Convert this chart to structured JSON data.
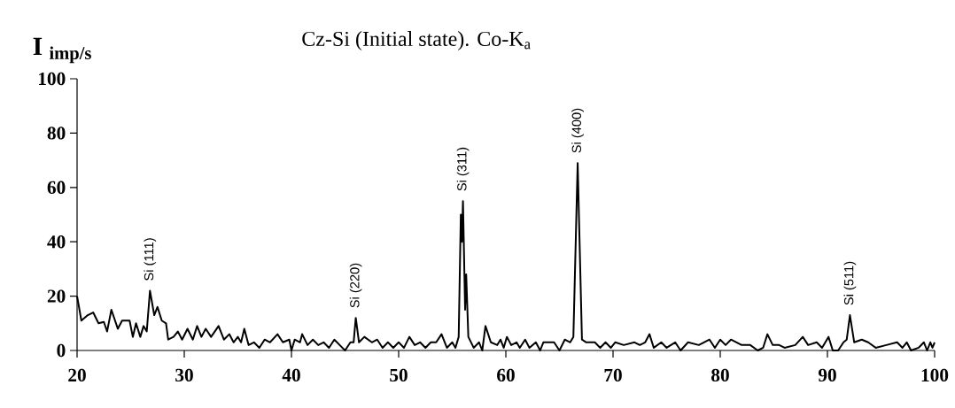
{
  "chart_data": {
    "type": "line",
    "title": "Cz-Si (Initial state). Co-K$_{a}$",
    "ylabel": "I $_{imp/s}$",
    "xlim": [
      20,
      100
    ],
    "ylim": [
      0,
      100
    ],
    "xticks": [
      20,
      30,
      40,
      50,
      60,
      70,
      80,
      90,
      100
    ],
    "yticks": [
      0,
      20,
      40,
      60,
      80,
      100
    ],
    "annotations": [
      {
        "text": "Si (111)",
        "x": 26.8,
        "y": 22
      },
      {
        "text": "Si (220)",
        "x": 46.0,
        "y": 12
      },
      {
        "text": "Si (311)",
        "x": 56.0,
        "y": 55
      },
      {
        "text": "Si (400)",
        "x": 66.7,
        "y": 69
      },
      {
        "text": "Si (511)",
        "x": 92.1,
        "y": 13
      }
    ],
    "series": [
      {
        "color": "#000000",
        "x": [
          20,
          20.4,
          21,
          21.5,
          22,
          22.5,
          22.8,
          23.2,
          23.8,
          24.2,
          24.9,
          25.2,
          25.5,
          25.9,
          26.2,
          26.5,
          26.8,
          27.2,
          27.5,
          27.9,
          28.3,
          28.5,
          29,
          29.4,
          29.8,
          30.3,
          30.8,
          31.2,
          31.6,
          32,
          32.5,
          33.2,
          33.7,
          34.2,
          34.6,
          35,
          35.3,
          35.6,
          36,
          36.5,
          37,
          37.5,
          38,
          38.7,
          39.2,
          39.8,
          40,
          40.3,
          40.8,
          41,
          41.5,
          42,
          42.5,
          43,
          43.5,
          44,
          44.5,
          45,
          45.5,
          45.8,
          46,
          46.3,
          46.8,
          47.5,
          48,
          48.5,
          49,
          49.5,
          50,
          50.5,
          51,
          51.5,
          52,
          52.5,
          53,
          53.5,
          54,
          54.5,
          55,
          55.3,
          55.6,
          55.8,
          55.9,
          56,
          56.2,
          56.3,
          56.5,
          57,
          57.5,
          57.8,
          58.1,
          58.6,
          59.2,
          59.5,
          59.8,
          60.1,
          60.5,
          61,
          61.3,
          61.8,
          62.2,
          62.8,
          63.2,
          63.5,
          64.5,
          65,
          65.5,
          66,
          66.3,
          66.7,
          67.1,
          67.5,
          68.3,
          68.8,
          69.3,
          69.8,
          70.2,
          71,
          72,
          72.5,
          73,
          73.4,
          73.8,
          74.5,
          75,
          75.8,
          76.3,
          77,
          78,
          79,
          79.5,
          80,
          80.5,
          81,
          82,
          82.8,
          83.5,
          84,
          84.4,
          84.9,
          85.5,
          86,
          87,
          87.7,
          88.2,
          89,
          89.5,
          90.1,
          90.5,
          91,
          91.5,
          91.8,
          92.1,
          92.5,
          93.2,
          93.8,
          94.5,
          95.5,
          96.5,
          97,
          97.4,
          97.8,
          98.5,
          99,
          99.3,
          99.6,
          99.8,
          100
        ],
        "values": [
          20,
          11,
          13,
          14,
          10,
          10.5,
          7,
          15,
          8,
          11,
          11,
          5,
          10,
          5,
          9,
          7,
          22,
          13,
          16,
          11,
          10,
          4,
          5,
          7,
          4,
          8,
          4,
          9,
          5,
          8,
          5,
          9,
          4,
          6,
          3,
          5,
          3,
          8,
          2,
          3,
          1,
          4,
          3,
          6,
          3,
          4,
          0,
          4,
          3,
          6,
          2,
          4,
          2,
          3,
          1,
          4,
          2,
          0,
          3,
          3,
          12,
          3,
          5,
          3,
          4,
          1,
          3,
          1,
          3,
          1,
          5,
          2,
          3,
          1,
          3,
          3,
          6,
          1,
          3,
          1,
          5,
          50,
          40,
          55,
          15,
          28,
          5,
          1,
          3,
          0,
          9,
          3,
          2,
          4,
          1,
          5,
          2,
          3,
          1,
          4,
          1,
          3,
          0,
          3,
          3,
          0,
          4,
          3,
          5,
          69,
          4,
          3,
          3,
          1,
          3,
          1,
          3,
          2,
          3,
          2,
          3,
          6,
          1,
          3,
          1,
          3,
          0,
          3,
          2,
          4,
          1,
          4,
          2,
          4,
          2,
          2,
          0,
          1,
          6,
          2,
          2,
          1,
          2,
          5,
          2,
          3,
          1,
          5,
          0,
          0,
          3,
          4,
          13,
          3,
          4,
          3,
          1,
          2,
          3,
          1,
          3,
          0,
          1,
          3,
          0,
          3,
          1,
          3
        ]
      }
    ]
  }
}
